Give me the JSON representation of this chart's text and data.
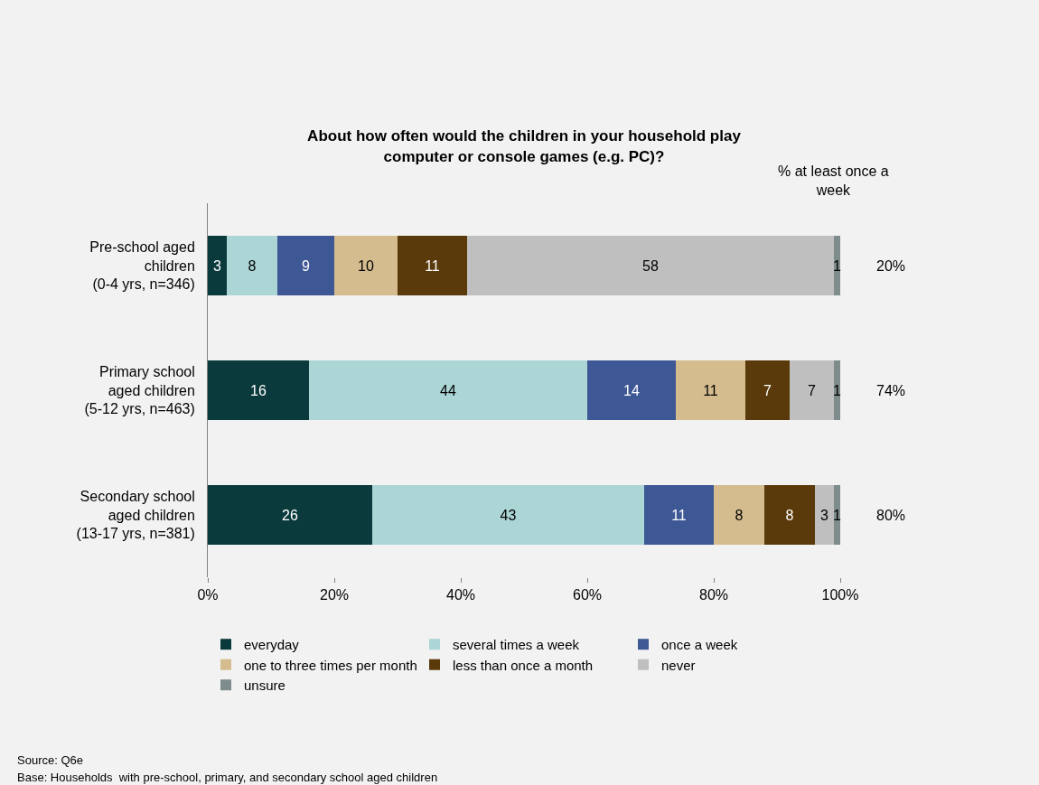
{
  "chart_data": {
    "type": "bar",
    "orientation": "horizontal",
    "stacked": true,
    "title": "About how often would the children in your household play\ncomputer or console games (e.g. PC)?",
    "categories": [
      "Pre-school aged\nchildren\n(0-4 yrs, n=346)",
      "Primary school\naged children\n(5-12 yrs, n=463)",
      "Secondary school\naged children\n(13-17 yrs, n=381)"
    ],
    "series": [
      {
        "name": "everyday",
        "color": "#0b3a3c",
        "values": [
          3,
          16,
          26
        ]
      },
      {
        "name": "several times a week",
        "color": "#acd5d6",
        "values": [
          8,
          44,
          43
        ]
      },
      {
        "name": "once a week",
        "color": "#3e5795",
        "values": [
          9,
          14,
          11
        ]
      },
      {
        "name": "one to three times per month",
        "color": "#d4bc8e",
        "values": [
          10,
          11,
          8
        ]
      },
      {
        "name": "less than once a month",
        "color": "#5a3a0a",
        "values": [
          11,
          7,
          8
        ]
      },
      {
        "name": "never",
        "color": "#bfbfbf",
        "values": [
          58,
          7,
          3
        ]
      },
      {
        "name": "unsure",
        "color": "#7f8c8c",
        "values": [
          1,
          1,
          1
        ]
      }
    ],
    "xlim": [
      0,
      100
    ],
    "xticks": [
      {
        "value": 0,
        "label": "0%"
      },
      {
        "value": 20,
        "label": "20%"
      },
      {
        "value": 40,
        "label": "40%"
      },
      {
        "value": 60,
        "label": "60%"
      },
      {
        "value": 80,
        "label": "80%"
      },
      {
        "value": 100,
        "label": "100%"
      }
    ],
    "data_labels": true,
    "grid": false,
    "legend": "bottom",
    "annotations": [
      "% at least once a\nweek",
      "20%",
      "74%",
      "80%",
      "Source: Q6e",
      "Base: Households  with pre-school, primary, and secondary school aged children"
    ]
  }
}
